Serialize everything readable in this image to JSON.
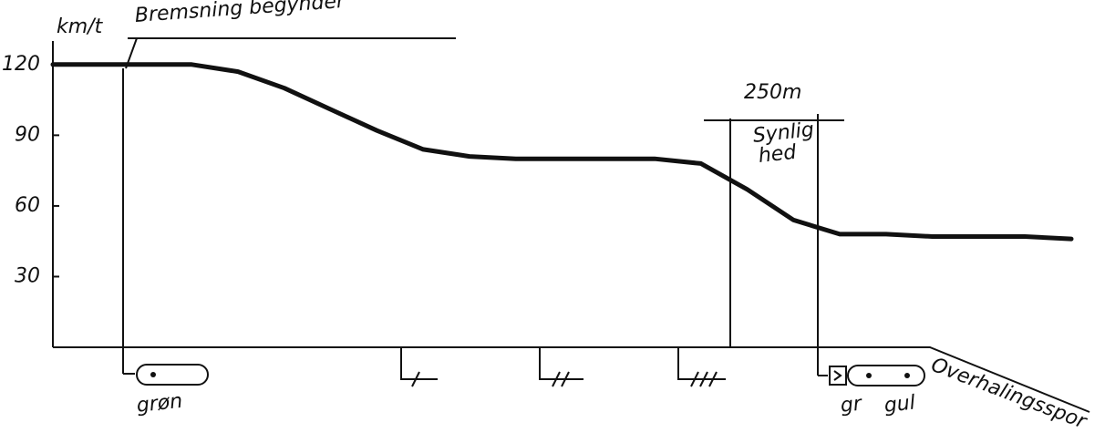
{
  "chart_data": {
    "type": "line",
    "y_label": "km/t",
    "categories": [
      null,
      null,
      null,
      null,
      null,
      null,
      null,
      null,
      null,
      null,
      null,
      null,
      null,
      null,
      null,
      null,
      null,
      null,
      null,
      null,
      null,
      null,
      null
    ],
    "series": [
      {
        "color": "#111111",
        "values": [
          120,
          120,
          120,
          120,
          117,
          110,
          101,
          92,
          84,
          81,
          80,
          80,
          80,
          80,
          78,
          67,
          54,
          48,
          48,
          47,
          47,
          47,
          46
        ]
      }
    ],
    "ylim": [
      0,
      130
    ],
    "yticks": [
      30,
      60,
      90,
      120
    ],
    "annotations": [
      "Bremsning begynder",
      "250m",
      "Synlig",
      "hed",
      "grøn",
      "gr",
      "gul",
      "Overhalingsspor"
    ]
  }
}
